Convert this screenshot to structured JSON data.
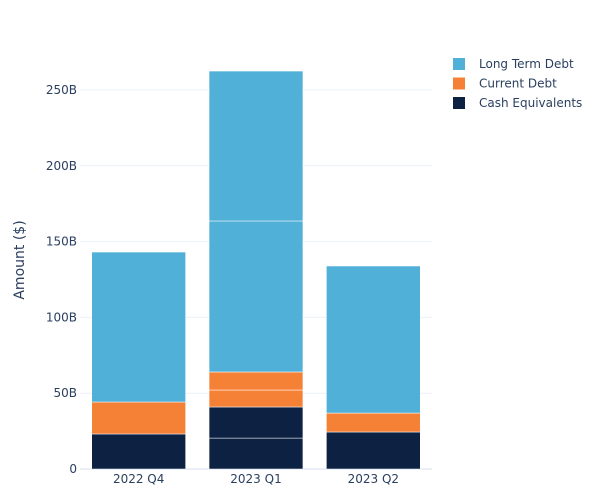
{
  "chart_data": {
    "type": "bar",
    "stacked": true,
    "title": "",
    "xlabel": "",
    "ylabel": "Amount ($)",
    "ylim": [
      0,
      290
    ],
    "yticks": [
      0,
      50,
      100,
      150,
      200,
      250
    ],
    "ytick_labels": [
      "0",
      "50B",
      "100B",
      "150B",
      "200B",
      "250B"
    ],
    "grid": true,
    "legend_position": "top-right",
    "categories": [
      "2022 Q4",
      "2023 Q1",
      "2023 Q2"
    ],
    "units": "billions USD",
    "series": [
      {
        "name": "Cash Equivalents",
        "color": "#0d2142",
        "values": [
          [
            23.1
          ],
          [
            20.4,
            20.5
          ],
          [
            24.4
          ]
        ]
      },
      {
        "name": "Current Debt",
        "color": "#f58137",
        "values": [
          [
            21.1
          ],
          [
            11.2,
            11.9
          ],
          [
            12.5
          ]
        ]
      },
      {
        "name": "Long Term Debt",
        "color": "#51b0d8",
        "values": [
          [
            98.9
          ],
          [
            99.6,
            98.9
          ],
          [
            97.0
          ]
        ]
      }
    ]
  }
}
